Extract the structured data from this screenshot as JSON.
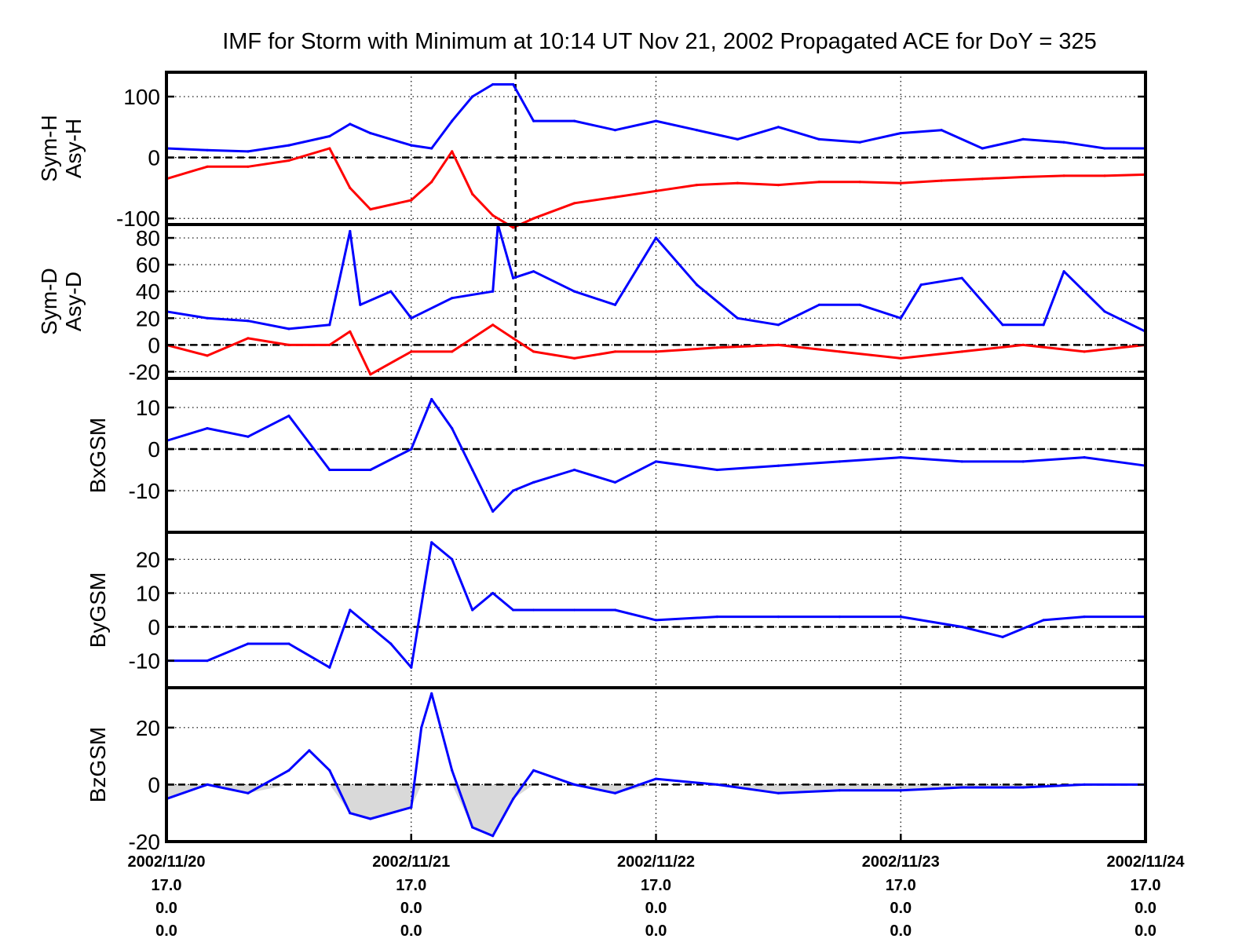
{
  "title": "IMF for Storm with Minimum at 10:14 UT Nov 21, 2002  Propagated ACE for DoY = 325",
  "colors": {
    "series_blue": "#0000ff",
    "series_red": "#ff0000",
    "navy": "#00007a",
    "shade": "#d9d9d9",
    "axis": "#000000"
  },
  "x_axis": {
    "ticks": [
      {
        "date": "2002/11/20",
        "l1": "17.0",
        "l2": "0.0",
        "l3": "0.0"
      },
      {
        "date": "2002/11/21",
        "l1": "17.0",
        "l2": "0.0",
        "l3": "0.0"
      },
      {
        "date": "2002/11/22",
        "l1": "17.0",
        "l2": "0.0",
        "l3": "0.0"
      },
      {
        "date": "2002/11/23",
        "l1": "17.0",
        "l2": "0.0",
        "l3": "0.0"
      },
      {
        "date": "2002/11/24",
        "l1": "17.0",
        "l2": "0.0",
        "l3": "0.0"
      }
    ],
    "range": [
      "2002-11-20",
      "2002-11-24"
    ],
    "grid": "dotted vertical at each day"
  },
  "storm_minimum": {
    "label": "10:14 UT Nov 21, 2002",
    "time": "2002-11-21 10:14"
  },
  "chart_data": [
    {
      "type": "line",
      "ylabels": [
        "Sym-H",
        "Asy-H"
      ],
      "ylim": [
        -110,
        140
      ],
      "yticks": [
        100,
        0,
        -100
      ],
      "zero_line": true,
      "series": [
        {
          "name": "Asy-H",
          "color": "#0000ff",
          "x": [
            "2002-11-20 00:00",
            "2002-11-20 04:00",
            "2002-11-20 08:00",
            "2002-11-20 12:00",
            "2002-11-20 16:00",
            "2002-11-20 18:00",
            "2002-11-20 20:00",
            "2002-11-21 00:00",
            "2002-11-21 02:00",
            "2002-11-21 04:00",
            "2002-11-21 06:00",
            "2002-11-21 08:00",
            "2002-11-21 10:00",
            "2002-11-21 12:00",
            "2002-11-21 16:00",
            "2002-11-21 20:00",
            "2002-11-22 00:00",
            "2002-11-22 04:00",
            "2002-11-22 08:00",
            "2002-11-22 12:00",
            "2002-11-22 16:00",
            "2002-11-22 20:00",
            "2002-11-23 00:00",
            "2002-11-23 04:00",
            "2002-11-23 08:00",
            "2002-11-23 12:00",
            "2002-11-23 16:00",
            "2002-11-23 20:00",
            "2002-11-24 00:00"
          ],
          "y": [
            15,
            12,
            10,
            20,
            35,
            55,
            40,
            20,
            15,
            60,
            100,
            120,
            120,
            60,
            60,
            45,
            60,
            45,
            30,
            50,
            30,
            25,
            40,
            45,
            15,
            30,
            25,
            15,
            15
          ]
        },
        {
          "name": "Sym-H",
          "color": "#ff0000",
          "x": [
            "2002-11-20 00:00",
            "2002-11-20 04:00",
            "2002-11-20 08:00",
            "2002-11-20 12:00",
            "2002-11-20 16:00",
            "2002-11-20 18:00",
            "2002-11-20 20:00",
            "2002-11-21 00:00",
            "2002-11-21 02:00",
            "2002-11-21 04:00",
            "2002-11-21 06:00",
            "2002-11-21 08:00",
            "2002-11-21 10:00",
            "2002-11-21 12:00",
            "2002-11-21 16:00",
            "2002-11-21 20:00",
            "2002-11-22 00:00",
            "2002-11-22 04:00",
            "2002-11-22 08:00",
            "2002-11-22 12:00",
            "2002-11-22 16:00",
            "2002-11-22 20:00",
            "2002-11-23 00:00",
            "2002-11-23 04:00",
            "2002-11-23 08:00",
            "2002-11-23 12:00",
            "2002-11-23 16:00",
            "2002-11-23 20:00",
            "2002-11-24 00:00"
          ],
          "y": [
            -35,
            -15,
            -15,
            -5,
            15,
            -50,
            -85,
            -70,
            -40,
            10,
            -60,
            -95,
            -115,
            -100,
            -75,
            -65,
            -55,
            -45,
            -42,
            -45,
            -40,
            -40,
            -42,
            -38,
            -35,
            -32,
            -30,
            -30,
            -28
          ]
        }
      ]
    },
    {
      "type": "line",
      "ylabels": [
        "Sym-D",
        "Asy-D"
      ],
      "ylim": [
        -25,
        90
      ],
      "yticks": [
        80,
        60,
        40,
        20,
        0,
        -20
      ],
      "zero_line": true,
      "series": [
        {
          "name": "Asy-D",
          "color": "#0000ff",
          "x": [
            "2002-11-20 00:00",
            "2002-11-20 04:00",
            "2002-11-20 08:00",
            "2002-11-20 12:00",
            "2002-11-20 16:00",
            "2002-11-20 18:00",
            "2002-11-20 19:00",
            "2002-11-20 22:00",
            "2002-11-21 00:00",
            "2002-11-21 04:00",
            "2002-11-21 08:00",
            "2002-11-21 08:30",
            "2002-11-21 10:00",
            "2002-11-21 12:00",
            "2002-11-21 16:00",
            "2002-11-21 20:00",
            "2002-11-22 00:00",
            "2002-11-22 04:00",
            "2002-11-22 08:00",
            "2002-11-22 12:00",
            "2002-11-22 16:00",
            "2002-11-22 20:00",
            "2002-11-23 00:00",
            "2002-11-23 02:00",
            "2002-11-23 06:00",
            "2002-11-23 10:00",
            "2002-11-23 14:00",
            "2002-11-23 16:00",
            "2002-11-23 20:00",
            "2002-11-24 00:00"
          ],
          "y": [
            25,
            20,
            18,
            12,
            15,
            85,
            30,
            40,
            20,
            35,
            40,
            90,
            50,
            55,
            40,
            30,
            80,
            45,
            20,
            15,
            30,
            30,
            20,
            45,
            50,
            15,
            15,
            55,
            25,
            10
          ]
        },
        {
          "name": "Sym-D",
          "color": "#ff0000",
          "x": [
            "2002-11-20 00:00",
            "2002-11-20 04:00",
            "2002-11-20 08:00",
            "2002-11-20 12:00",
            "2002-11-20 16:00",
            "2002-11-20 18:00",
            "2002-11-20 20:00",
            "2002-11-21 00:00",
            "2002-11-21 04:00",
            "2002-11-21 08:00",
            "2002-11-21 10:00",
            "2002-11-21 12:00",
            "2002-11-21 16:00",
            "2002-11-21 20:00",
            "2002-11-22 00:00",
            "2002-11-22 06:00",
            "2002-11-22 12:00",
            "2002-11-22 18:00",
            "2002-11-23 00:00",
            "2002-11-23 06:00",
            "2002-11-23 12:00",
            "2002-11-23 18:00",
            "2002-11-24 00:00"
          ],
          "y": [
            0,
            -8,
            5,
            0,
            0,
            10,
            -22,
            -5,
            -5,
            15,
            5,
            -5,
            -10,
            -5,
            -5,
            -2,
            0,
            -5,
            -10,
            -5,
            0,
            -5,
            0
          ]
        }
      ]
    },
    {
      "type": "line",
      "ylabels": [
        "BxGSM"
      ],
      "ylim": [
        -20,
        17
      ],
      "yticks": [
        10,
        0,
        -10
      ],
      "zero_line": true,
      "series": [
        {
          "name": "BxGSM",
          "color": "#0000ff",
          "x": [
            "2002-11-20 00:00",
            "2002-11-20 04:00",
            "2002-11-20 08:00",
            "2002-11-20 12:00",
            "2002-11-20 16:00",
            "2002-11-20 20:00",
            "2002-11-21 00:00",
            "2002-11-21 02:00",
            "2002-11-21 04:00",
            "2002-11-21 06:00",
            "2002-11-21 08:00",
            "2002-11-21 10:00",
            "2002-11-21 12:00",
            "2002-11-21 16:00",
            "2002-11-21 20:00",
            "2002-11-22 00:00",
            "2002-11-22 06:00",
            "2002-11-22 12:00",
            "2002-11-22 18:00",
            "2002-11-23 00:00",
            "2002-11-23 06:00",
            "2002-11-23 12:00",
            "2002-11-23 18:00",
            "2002-11-24 00:00"
          ],
          "y": [
            2,
            5,
            3,
            8,
            -5,
            -5,
            0,
            12,
            5,
            -5,
            -15,
            -10,
            -8,
            -5,
            -8,
            -3,
            -5,
            -4,
            -3,
            -2,
            -3,
            -3,
            -2,
            -4
          ]
        }
      ]
    },
    {
      "type": "line",
      "ylabels": [
        "ByGSM"
      ],
      "ylim": [
        -18,
        28
      ],
      "yticks": [
        20,
        10,
        0,
        -10
      ],
      "zero_line": true,
      "series": [
        {
          "name": "ByGSM",
          "color": "#0000ff",
          "x": [
            "2002-11-20 00:00",
            "2002-11-20 04:00",
            "2002-11-20 08:00",
            "2002-11-20 12:00",
            "2002-11-20 16:00",
            "2002-11-20 18:00",
            "2002-11-20 22:00",
            "2002-11-21 00:00",
            "2002-11-21 02:00",
            "2002-11-21 04:00",
            "2002-11-21 06:00",
            "2002-11-21 08:00",
            "2002-11-21 10:00",
            "2002-11-21 12:00",
            "2002-11-21 16:00",
            "2002-11-21 20:00",
            "2002-11-22 00:00",
            "2002-11-22 06:00",
            "2002-11-22 12:00",
            "2002-11-22 18:00",
            "2002-11-23 00:00",
            "2002-11-23 06:00",
            "2002-11-23 10:00",
            "2002-11-23 14:00",
            "2002-11-23 18:00",
            "2002-11-24 00:00"
          ],
          "y": [
            -10,
            -10,
            -5,
            -5,
            -12,
            5,
            -5,
            -12,
            25,
            20,
            5,
            10,
            5,
            5,
            5,
            5,
            2,
            3,
            3,
            3,
            3,
            0,
            -3,
            2,
            3,
            3
          ]
        }
      ]
    },
    {
      "type": "line",
      "ylabels": [
        "BzGSM"
      ],
      "ylim": [
        -20,
        34
      ],
      "yticks": [
        20,
        0,
        -20
      ],
      "zero_line": true,
      "southward_shading": true,
      "series": [
        {
          "name": "BzGSM",
          "color": "#0000ff",
          "x": [
            "2002-11-20 00:00",
            "2002-11-20 04:00",
            "2002-11-20 08:00",
            "2002-11-20 12:00",
            "2002-11-20 14:00",
            "2002-11-20 16:00",
            "2002-11-20 18:00",
            "2002-11-20 20:00",
            "2002-11-21 00:00",
            "2002-11-21 01:00",
            "2002-11-21 02:00",
            "2002-11-21 04:00",
            "2002-11-21 06:00",
            "2002-11-21 08:00",
            "2002-11-21 10:00",
            "2002-11-21 12:00",
            "2002-11-21 16:00",
            "2002-11-21 20:00",
            "2002-11-22 00:00",
            "2002-11-22 06:00",
            "2002-11-22 12:00",
            "2002-11-22 18:00",
            "2002-11-23 00:00",
            "2002-11-23 06:00",
            "2002-11-23 12:00",
            "2002-11-23 18:00",
            "2002-11-24 00:00"
          ],
          "y": [
            -5,
            0,
            -3,
            5,
            12,
            5,
            -10,
            -12,
            -8,
            20,
            32,
            5,
            -15,
            -18,
            -5,
            5,
            0,
            -3,
            2,
            0,
            -3,
            -2,
            -2,
            -1,
            -1,
            0,
            0
          ]
        }
      ]
    }
  ]
}
